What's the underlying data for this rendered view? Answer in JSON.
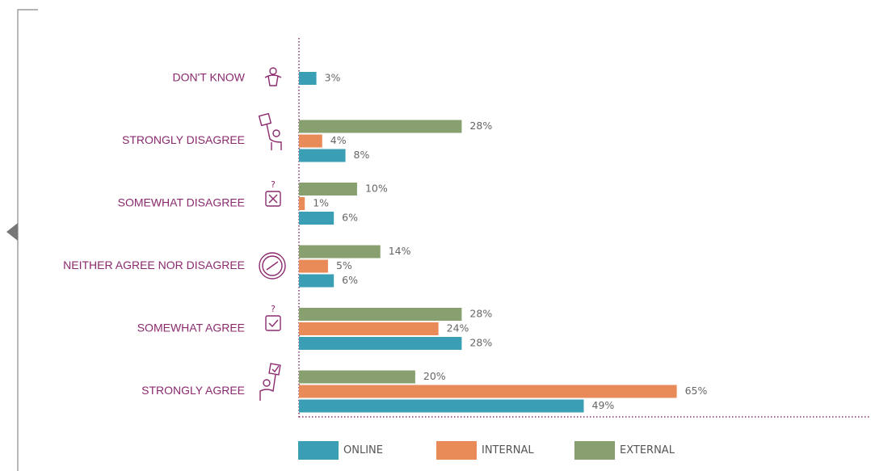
{
  "chart_data": {
    "type": "hbar",
    "categories": [
      "DON'T KNOW",
      "STRONGLY DISAGREE",
      "SOMEWHAT DISAGREE",
      "NEITHER AGREE NOR DISAGREE",
      "SOMEWHAT AGREE",
      "STRONGLY AGREE"
    ],
    "series": [
      {
        "name": "ONLINE",
        "color": "#3a9fb4",
        "values": [
          3,
          8,
          6,
          6,
          28,
          49
        ],
        "value_labels": [
          "3%",
          "8%",
          "6%",
          "6%",
          "28%",
          "49%"
        ]
      },
      {
        "name": "INTERNAL",
        "color": "#e98b58",
        "values": [
          null,
          4,
          1,
          5,
          24,
          65
        ],
        "value_labels": [
          null,
          "4%",
          "1%",
          "5%",
          "24%",
          "65%"
        ]
      },
      {
        "name": "EXTERNAL",
        "color": "#88a06f",
        "values": [
          null,
          28,
          10,
          14,
          28,
          20
        ],
        "value_labels": [
          null,
          "28%",
          "10%",
          "14%",
          "28%",
          "20%"
        ]
      }
    ],
    "xlim": [
      0,
      98
    ]
  }
}
